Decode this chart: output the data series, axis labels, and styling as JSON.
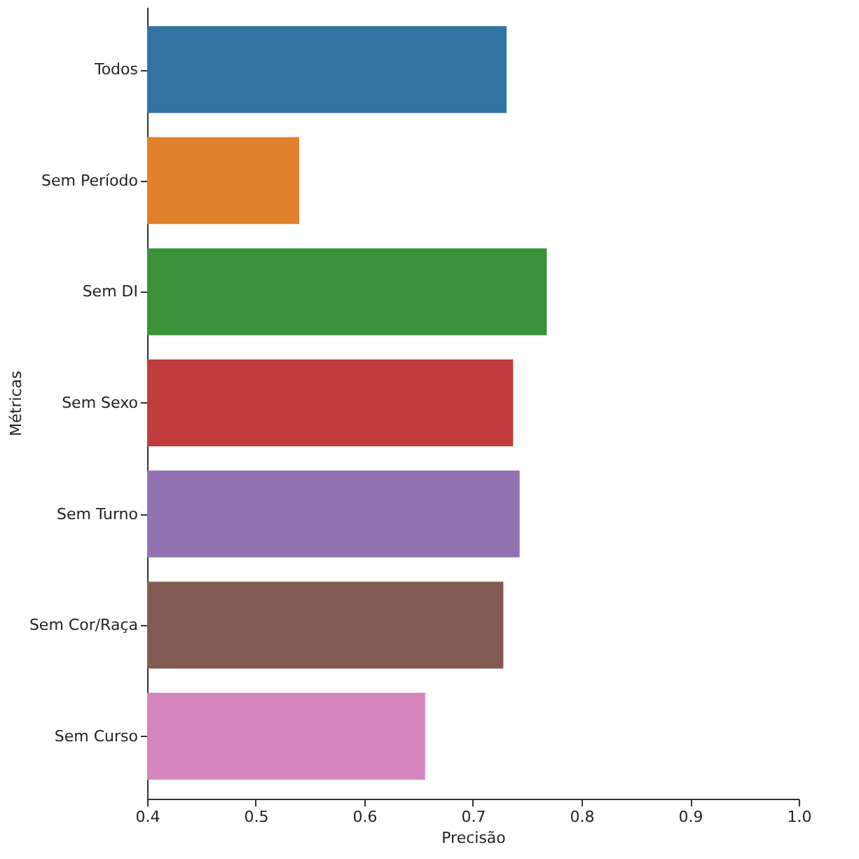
{
  "chart_data": {
    "type": "bar",
    "orientation": "horizontal",
    "xlabel": "Precisão",
    "ylabel": "Métricas",
    "categories": [
      "Todos",
      "Sem Período",
      "Sem DI",
      "Sem Sexo",
      "Sem Turno",
      "Sem Cor/Raça",
      "Sem Curso"
    ],
    "values": [
      0.731,
      0.54,
      0.768,
      0.737,
      0.743,
      0.728,
      0.656
    ],
    "colors": [
      "#3274a1",
      "#e1812c",
      "#3a923a",
      "#c03d3e",
      "#9372b2",
      "#845b53",
      "#d684bd"
    ],
    "xlim": [
      0.4,
      1.0
    ],
    "xticks": [
      0.4,
      0.5,
      0.6,
      0.7,
      0.8,
      0.9,
      {
        "value": 1.0,
        "label": "1.0"
      }
    ],
    "grid": false
  }
}
